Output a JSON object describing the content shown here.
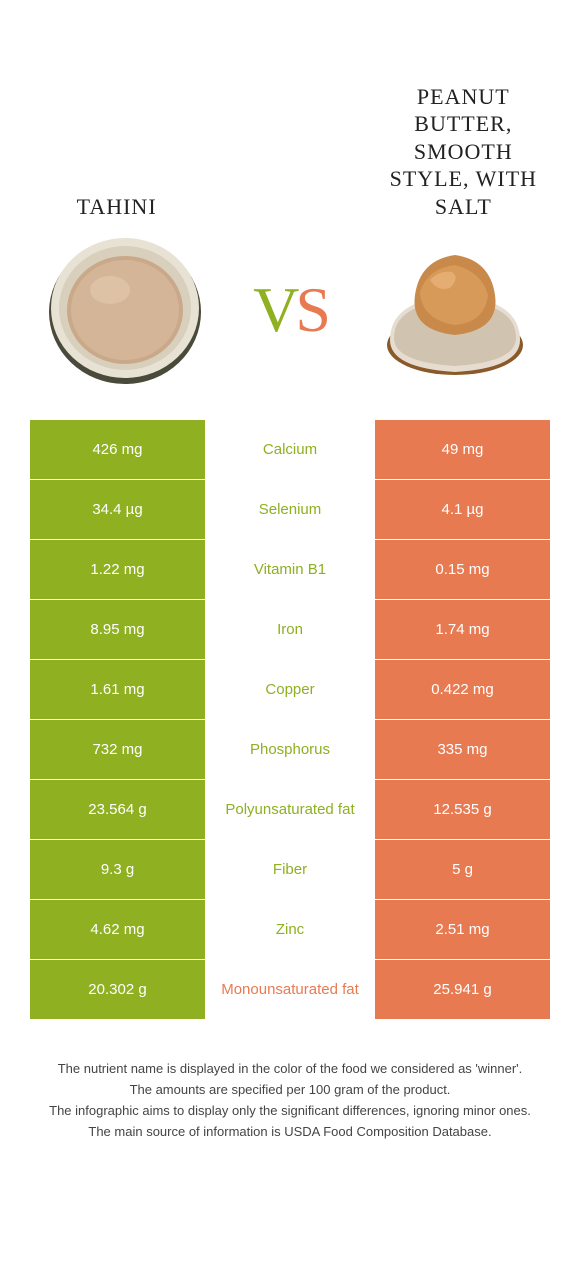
{
  "colors": {
    "left": "#8eb021",
    "right": "#e87a52",
    "mid_bg": "#ffffff",
    "text_on_color": "#ffffff"
  },
  "left": {
    "title": "TAHINI"
  },
  "right": {
    "title": "PEANUT BUTTER, SMOOTH STYLE, WITH SALT"
  },
  "vs": {
    "v": "V",
    "s": "S"
  },
  "rows": [
    {
      "label": "Calcium",
      "left": "426 mg",
      "right": "49 mg",
      "winner": "left"
    },
    {
      "label": "Selenium",
      "left": "34.4 µg",
      "right": "4.1 µg",
      "winner": "left"
    },
    {
      "label": "Vitamin B1",
      "left": "1.22 mg",
      "right": "0.15 mg",
      "winner": "left"
    },
    {
      "label": "Iron",
      "left": "8.95 mg",
      "right": "1.74 mg",
      "winner": "left"
    },
    {
      "label": "Copper",
      "left": "1.61 mg",
      "right": "0.422 mg",
      "winner": "left"
    },
    {
      "label": "Phosphorus",
      "left": "732 mg",
      "right": "335 mg",
      "winner": "left"
    },
    {
      "label": "Polyunsaturated fat",
      "left": "23.564 g",
      "right": "12.535 g",
      "winner": "left"
    },
    {
      "label": "Fiber",
      "left": "9.3 g",
      "right": "5 g",
      "winner": "left"
    },
    {
      "label": "Zinc",
      "left": "4.62 mg",
      "right": "2.51 mg",
      "winner": "left"
    },
    {
      "label": "Monounsaturated fat",
      "left": "20.302 g",
      "right": "25.941 g",
      "winner": "right"
    }
  ],
  "footnotes": [
    "The nutrient name is displayed in the color of the food we considered as 'winner'.",
    "The amounts are specified per 100 gram of the product.",
    "The infographic aims to display only the significant differences, ignoring minor ones.",
    "The main source of information is USDA Food Composition Database."
  ]
}
